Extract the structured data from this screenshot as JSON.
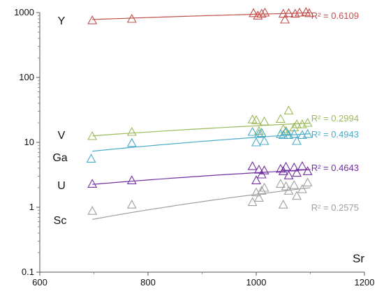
{
  "chart_data": {
    "type": "scatter",
    "title": "",
    "xlabel": "Sr",
    "ylabel": "",
    "xlim": [
      600,
      1200
    ],
    "ylim": [
      0.1,
      1000
    ],
    "y_scale": "log",
    "grid": false,
    "x_ticks": [
      600,
      800,
      1000,
      1200
    ],
    "x_tick_labels": [
      "600",
      "800",
      "1000",
      "1200"
    ],
    "y_ticks": [
      0.1,
      1,
      10,
      100,
      1000
    ],
    "y_tick_labels": [
      "0.1",
      "1",
      "10",
      "100",
      "1000"
    ],
    "marker": "open-triangle",
    "series": [
      {
        "name": "Y",
        "color": "#c0504d",
        "r2": "R² = 0.6109",
        "x": [
          697,
          770,
          995,
          1003,
          1010,
          1016,
          1050,
          1053,
          1060,
          1072,
          1080,
          1092,
          1098
        ],
        "y": [
          760,
          800,
          980,
          900,
          960,
          1000,
          960,
          780,
          980,
          960,
          1000,
          1020,
          980
        ],
        "trend": [
          [
            697,
            780
          ],
          [
            1100,
            990
          ]
        ]
      },
      {
        "name": "V",
        "color": "#9bbb59",
        "r2": "R² = 0.2994",
        "x": [
          697,
          770,
          993,
          1000,
          1005,
          1010,
          1015,
          1045,
          1050,
          1055,
          1060,
          1070,
          1075,
          1085,
          1095
        ],
        "y": [
          12.5,
          14.5,
          22.5,
          22,
          15,
          14,
          21,
          23,
          16,
          15,
          31,
          17,
          19,
          19,
          20
        ],
        "trend": [
          [
            697,
            12.6
          ],
          [
            1100,
            19.8
          ]
        ]
      },
      {
        "name": "Ga",
        "color": "#4bacc6",
        "r2": "R² = 0.4943",
        "x": [
          695,
          770,
          993,
          1000,
          1005,
          1010,
          1015,
          1045,
          1050,
          1055,
          1060,
          1070,
          1075,
          1085,
          1095
        ],
        "y": [
          5.6,
          9.8,
          14.5,
          10,
          13.5,
          14,
          10.5,
          13.5,
          13,
          14.5,
          13,
          13.5,
          10.5,
          13,
          13.5
        ],
        "trend": [
          [
            697,
            7.3
          ],
          [
            1100,
            13.6
          ]
        ]
      },
      {
        "name": "U",
        "color": "#7030a0",
        "r2": "R² = 0.4643",
        "x": [
          697,
          770,
          993,
          1000,
          1005,
          1010,
          1015,
          1045,
          1050,
          1055,
          1060,
          1070,
          1075,
          1085,
          1095
        ],
        "y": [
          2.3,
          2.6,
          4.3,
          2.6,
          3.8,
          3.2,
          3.7,
          3.9,
          3.6,
          4.2,
          3.1,
          4.1,
          3.4,
          4.3,
          3.6
        ],
        "trend": [
          [
            697,
            2.25
          ],
          [
            1100,
            3.8
          ]
        ]
      },
      {
        "name": "Sc",
        "color": "#a0a0a0",
        "r2": "R² = 0.2575",
        "x": [
          697,
          770,
          993,
          1000,
          1005,
          1010,
          1015,
          1045,
          1050,
          1055,
          1060,
          1070,
          1075,
          1085,
          1095
        ],
        "y": [
          0.88,
          1.1,
          1.2,
          1.7,
          1.4,
          1.8,
          2.0,
          2.3,
          1.1,
          2.1,
          1.8,
          2.2,
          1.5,
          1.9,
          2.4
        ],
        "trend": [
          [
            697,
            0.65
          ],
          [
            1100,
            2.0
          ]
        ]
      }
    ]
  }
}
